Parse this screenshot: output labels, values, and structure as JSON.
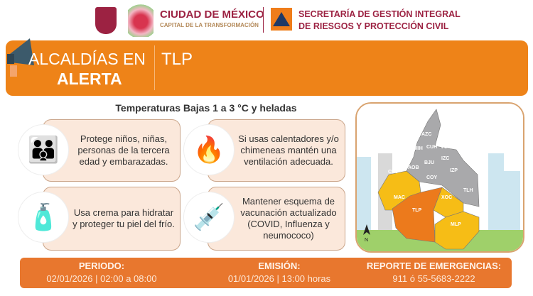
{
  "header": {
    "city_title": "CIUDAD DE MÉXICO",
    "city_subtitle": "CAPITAL DE LA TRANSFORMACIÓN",
    "agency_line1": "SECRETARÍA DE GESTIÓN INTEGRAL",
    "agency_line2": "DE RIESGOS Y PROTECCIÓN CIVIL"
  },
  "banner": {
    "label_line1": "ALCALDÍAS EN",
    "label_line2": "ALERTA",
    "alcaldias": "TLP"
  },
  "alert_title": "Temperaturas Bajas 1 a  3 °C y heladas",
  "tips": [
    {
      "text": "Protege niños, niñas, personas de la tercera edad y embarazadas.",
      "icon": "family-care-icon"
    },
    {
      "text": "Si usas calentadores y/o chimeneas mantén una ventilación adecuada.",
      "icon": "heater-window-icon"
    },
    {
      "text": "Usa crema para hidratar y proteger tu piel del frío.",
      "icon": "face-cream-icon"
    },
    {
      "text": "Mantener esquema de vacunación actualizado (COVID, Influenza y neumococo)",
      "icon": "vaccination-icon"
    }
  ],
  "map": {
    "north": "N",
    "alert_color": "#ec7a1c",
    "warning_color": "#f6bd16",
    "neutral_color": "#a9a9ab",
    "districts": {
      "AZC": "AZC",
      "GAM": "GAM",
      "MIH": "MIH",
      "CUH": "CUH",
      "VCA": "VCA",
      "IZC": "IZC",
      "BJU": "BJU",
      "AOB": "AOB",
      "CUJ": "CUJ",
      "COY": "COY",
      "IZP": "IZP",
      "MAC": "MAC",
      "TLH": "TLH",
      "XOC": "XOC",
      "TLP": "TLP",
      "MLP": "MLP"
    }
  },
  "footer": {
    "period_label": "PERIODO:",
    "period_value": "02/01/2026 | 02:00 a 08:00",
    "emission_label": "EMISIÓN:",
    "emission_value": "01/01/2026 | 13:00 horas",
    "report_label": "REPORTE DE EMERGENCIAS:",
    "report_value": "911 ó 55-5683-2222"
  }
}
